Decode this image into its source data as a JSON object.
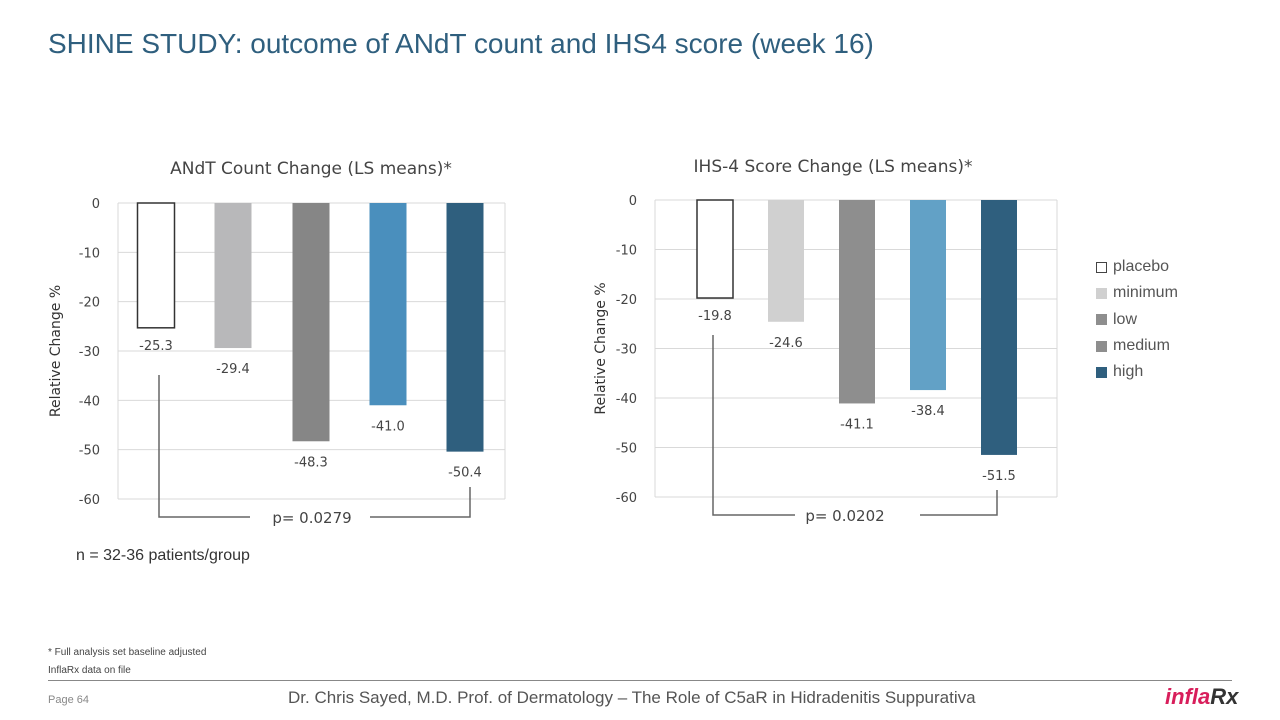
{
  "title": "SHINE STUDY: outcome of ANdT count and IHS4 score (week 16)",
  "n_note": "n = 32-36 patients/group",
  "footnote1": "* Full analysis set baseline adjusted",
  "footnote2": "InflaRx data on file",
  "page": "Page 64",
  "footer": "Dr. Chris Sayed, M.D. Prof. of Dermatology – The Role of C5aR in Hidradenitis Suppurativa",
  "logo": {
    "part1": "infla",
    "part2": "Rx"
  },
  "legend": [
    {
      "label": "placebo",
      "color": "#ffffff"
    },
    {
      "label": "minimum",
      "color": "#d0d0d0"
    },
    {
      "label": "low",
      "color": "#8e8e8e"
    },
    {
      "label": "medium",
      "color": "#8e8e8e"
    },
    {
      "label": "high",
      "color": "#2f5f7e"
    }
  ],
  "chart_data": [
    {
      "type": "bar",
      "title": "ANdT Count Change (LS means)*",
      "ylabel": "Relative Change %",
      "ylim": [
        -60,
        0
      ],
      "yticks": [
        "0",
        "-10",
        "-20",
        "-30",
        "-40",
        "-50",
        "-60"
      ],
      "categories": [
        "placebo",
        "minimum",
        "low",
        "medium",
        "high"
      ],
      "values": [
        -25.3,
        -29.4,
        -48.3,
        -41.0,
        -50.4
      ],
      "data_labels": [
        "-25.3",
        "-29.4",
        "-48.3",
        "-41.0",
        "-50.4"
      ],
      "colors": [
        "#ffffff",
        "#b8b8ba",
        "#868686",
        "#4a8fbd",
        "#2f5f7e"
      ],
      "annotation": "p= 0.0279"
    },
    {
      "type": "bar",
      "title": "IHS-4 Score Change (LS means)*",
      "ylabel": "Relative Change %",
      "ylim": [
        -60,
        0
      ],
      "yticks": [
        "0",
        "-10",
        "-20",
        "-30",
        "-40",
        "-50",
        "-60"
      ],
      "categories": [
        "placebo",
        "minimum",
        "low",
        "medium",
        "high"
      ],
      "values": [
        -19.8,
        -24.6,
        -41.1,
        -38.4,
        -51.5
      ],
      "data_labels": [
        "-19.8",
        "-24.6",
        "-41.1",
        "-38.4",
        "-51.5"
      ],
      "colors": [
        "#ffffff",
        "#d0d0d0",
        "#8e8e8e",
        "#62a1c6",
        "#2f5f7e"
      ],
      "annotation": "p= 0.0202"
    }
  ]
}
